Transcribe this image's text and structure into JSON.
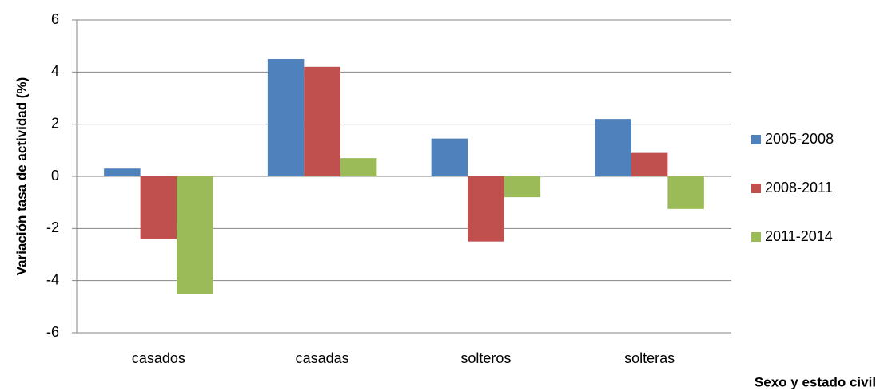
{
  "chart_data": {
    "type": "bar",
    "x_label": "Sexo y estado civil",
    "y_label": "Variación  tasa de actividad (%)",
    "categories": [
      "casados",
      "casadas",
      "solteros",
      "solteras"
    ],
    "series": [
      {
        "name": "2005-2008",
        "color": "#4f81bd",
        "values": [
          0.3,
          4.5,
          1.45,
          2.2
        ]
      },
      {
        "name": "2008-2011",
        "color": "#c0504d",
        "values": [
          -2.4,
          4.2,
          -2.5,
          0.9
        ]
      },
      {
        "name": "2011-2014",
        "color": "#9bbb59",
        "values": [
          -4.5,
          0.7,
          -0.8,
          -1.25
        ]
      }
    ],
    "ylim": [
      -6,
      6
    ],
    "yticks": [
      -6,
      -4,
      -2,
      0,
      2,
      4,
      6
    ],
    "grid": true,
    "legend": "right"
  }
}
